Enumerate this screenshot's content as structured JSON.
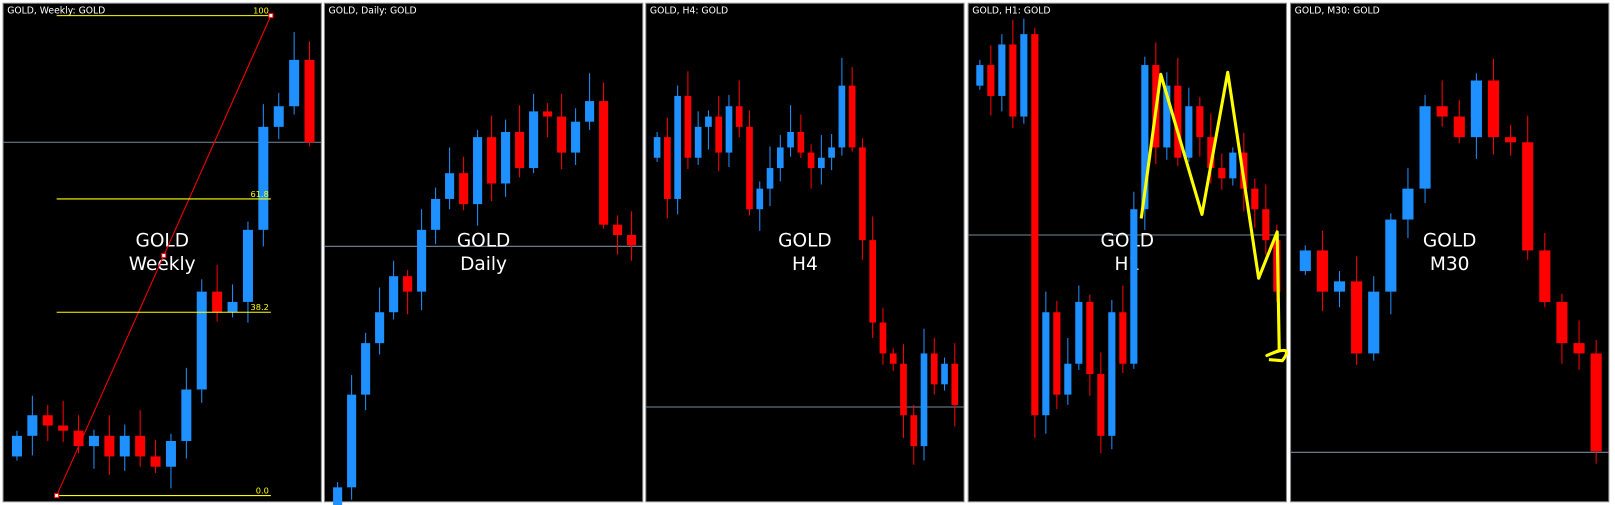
{
  "panels": [
    {
      "header": "GOLD, Weekly:  GOLD",
      "watermark": [
        "GOLD",
        "Weekly"
      ],
      "fib_levels": [
        "100",
        "61.8",
        "38.2",
        "0.0"
      ]
    },
    {
      "header": "GOLD, Daily:  GOLD",
      "watermark": [
        "GOLD",
        "Daily"
      ]
    },
    {
      "header": "GOLD, H4:  GOLD",
      "watermark": [
        "GOLD",
        "H4"
      ]
    },
    {
      "header": "GOLD, H1:  GOLD",
      "watermark": [
        "GOLD",
        "H1"
      ]
    },
    {
      "header": "GOLD, M30:  GOLD",
      "watermark": [
        "GOLD",
        "M30"
      ]
    }
  ]
}
